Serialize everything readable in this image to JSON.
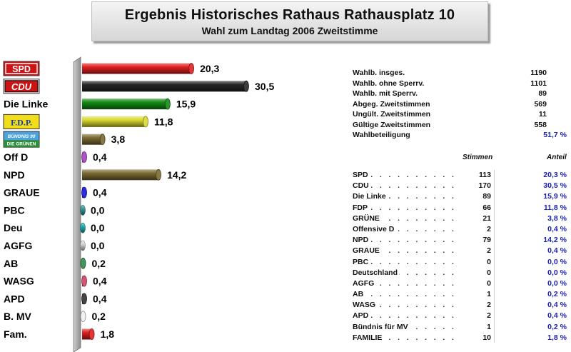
{
  "title": "Ergebnis Historisches Rathaus Rathausplatz 10",
  "subtitle": "Wahl zum Landtag 2006 Zweitstimme",
  "chart_data": {
    "type": "bar",
    "orientation": "horizontal",
    "categories": [
      "SPD",
      "CDU",
      "Die Linke",
      "F.D.P.",
      "BÜNDNIS 90 DIE GRÜNEN",
      "Off D",
      "NPD",
      "GRAUE",
      "PBC",
      "Deu",
      "AGFG",
      "AB",
      "WASG",
      "APD",
      "B. MV",
      "Fam."
    ],
    "values": [
      20.3,
      30.5,
      15.9,
      11.8,
      3.8,
      0.4,
      14.2,
      0.4,
      0.0,
      0.0,
      0.0,
      0.2,
      0.4,
      0.4,
      0.2,
      1.8
    ],
    "value_labels": [
      "20,3",
      "30,5",
      "15,9",
      "11,8",
      "3,8",
      "0,4",
      "14,2",
      "0,4",
      "0,0",
      "0,0",
      "0,0",
      "0,2",
      "0,4",
      "0,4",
      "0,2",
      "1,8"
    ],
    "colors": [
      "#e02020",
      "#262626",
      "#138a13",
      "#d8d830",
      "#7a6a30",
      "#a040c0",
      "#7a6a30",
      "#1515d8",
      "#3a9a9a",
      "#20b0b0",
      "#d8d8d8",
      "#2e8a4a",
      "#d04060",
      "#303030",
      "#f0f0f0",
      "#e02020"
    ],
    "logo_parties": [
      "SPD",
      "CDU",
      "F.D.P.",
      "BÜNDNIS 90 DIE GRÜNEN"
    ],
    "xlim": [
      0,
      30.5
    ],
    "title": "Ergebnis Historisches Rathaus Rathausplatz 10",
    "subtitle": "Wahl zum Landtag 2006 Zweitstimme",
    "grid": false
  },
  "stats": [
    {
      "label": "Wahlb. insges.",
      "value": "1190"
    },
    {
      "label": "Wahlb. ohne Sperrv.",
      "value": "1101"
    },
    {
      "label": "Wahlb. mit Sperrv.",
      "value": "89"
    },
    {
      "label": "Abgeg. Zweitstimmen",
      "value": "569"
    },
    {
      "label": "Ungült. Zweitstimmen",
      "value": "11"
    },
    {
      "label": "Gültige Zweitstimmen",
      "value": "558"
    },
    {
      "label": "Wahlbeteiligung",
      "value": "51,7 %",
      "pct": true
    }
  ],
  "table_headers": {
    "votes": "Stimmen",
    "share": "Anteil"
  },
  "results": [
    {
      "party": "SPD",
      "votes": "113",
      "pct": "20,3 %"
    },
    {
      "party": "CDU",
      "votes": "170",
      "pct": "30,5 %"
    },
    {
      "party": "Die Linke",
      "votes": "89",
      "pct": "15,9 %"
    },
    {
      "party": "FDP",
      "votes": "66",
      "pct": "11,8 %"
    },
    {
      "party": "GRÜNE",
      "votes": "21",
      "pct": "3,8 %"
    },
    {
      "party": "Offensive D",
      "votes": "2",
      "pct": "0,4 %"
    },
    {
      "party": "NPD",
      "votes": "79",
      "pct": "14,2 %"
    },
    {
      "party": "GRAUE",
      "votes": "2",
      "pct": "0,4 %"
    },
    {
      "party": "PBC",
      "votes": "0",
      "pct": "0,0 %"
    },
    {
      "party": "Deutschland",
      "votes": "0",
      "pct": "0,0 %"
    },
    {
      "party": "AGFG",
      "votes": "0",
      "pct": "0,0 %"
    },
    {
      "party": "AB",
      "votes": "1",
      "pct": "0,2 %"
    },
    {
      "party": "WASG",
      "votes": "2",
      "pct": "0,4 %"
    },
    {
      "party": "APD",
      "votes": "2",
      "pct": "0,4 %"
    },
    {
      "party": "Bündnis für MV",
      "votes": "1",
      "pct": "0,2 %"
    },
    {
      "party": "FAMILIE",
      "votes": "10",
      "pct": "1,8 %"
    }
  ]
}
